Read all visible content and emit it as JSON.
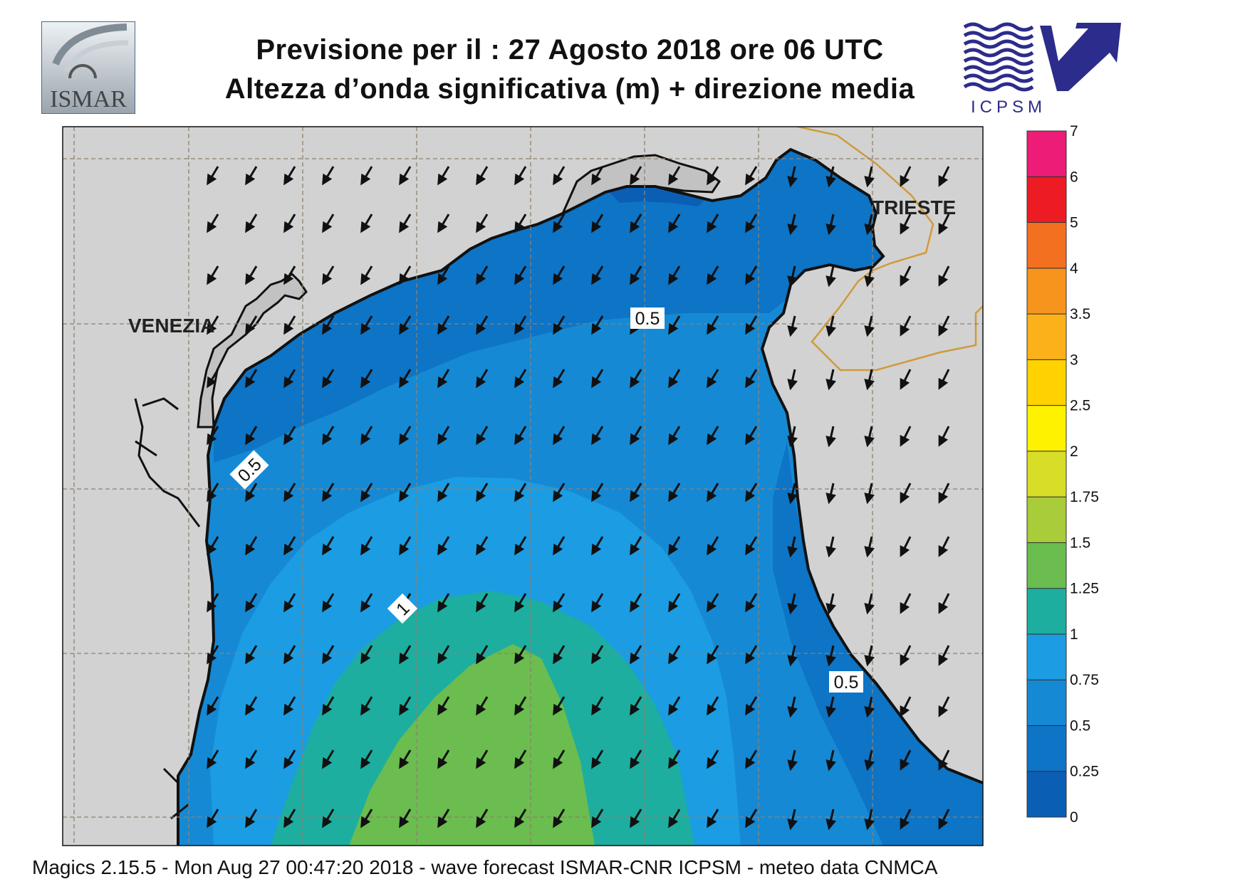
{
  "header": {
    "title_line1": "Previsione per il  :  27   Agosto  2018   ore 06 UTC",
    "title_line2": "Altezza d’onda significativa (m) + direzione media"
  },
  "logos": {
    "left": {
      "text": "ISMAR",
      "icon": "ismar-logo-icon"
    },
    "right": {
      "text": "ICPSM",
      "icon": "icpsm-wave-arrow-logo-icon"
    }
  },
  "map": {
    "region": "Northern Adriatic Sea",
    "cities": [
      {
        "name": "VENEZIA"
      },
      {
        "name": "TRIESTE"
      }
    ],
    "contour_labels": [
      "0.5",
      "0.5",
      "0.5",
      "1"
    ],
    "colors": {
      "land": "#d2d2d2",
      "coastline": "#111111",
      "border": "#d09a3a",
      "grid": "#8f8170"
    },
    "mean_wave_direction": "toward south-southwest"
  },
  "legend": {
    "title": "",
    "bands": [
      {
        "min": "0",
        "max": "0.25",
        "color": "#0a5fb5"
      },
      {
        "min": "0.25",
        "max": "0.5",
        "color": "#0d74c6"
      },
      {
        "min": "0.5",
        "max": "0.75",
        "color": "#1689d4"
      },
      {
        "min": "0.75",
        "max": "1",
        "color": "#1c9ce2"
      },
      {
        "min": "1",
        "max": "1.25",
        "color": "#1daea0"
      },
      {
        "min": "1.25",
        "max": "1.5",
        "color": "#6abd4e"
      },
      {
        "min": "1.5",
        "max": "1.75",
        "color": "#a8cc3a"
      },
      {
        "min": "1.75",
        "max": "2",
        "color": "#d8dd27"
      },
      {
        "min": "2",
        "max": "2.5",
        "color": "#fff200"
      },
      {
        "min": "2.5",
        "max": "3",
        "color": "#ffd200"
      },
      {
        "min": "3",
        "max": "3.5",
        "color": "#fbb21a"
      },
      {
        "min": "3.5",
        "max": "4",
        "color": "#f7941d"
      },
      {
        "min": "4",
        "max": "5",
        "color": "#f37021"
      },
      {
        "min": "5",
        "max": "6",
        "color": "#ed1c24"
      },
      {
        "min": "6",
        "max": "7",
        "color": "#ec1c77"
      }
    ],
    "tick_labels": [
      "0",
      "0.25",
      "0.5",
      "0.75",
      "1",
      "1.25",
      "1.5",
      "1.75",
      "2",
      "2.5",
      "3",
      "3.5",
      "4",
      "5",
      "6",
      "7"
    ]
  },
  "footer": {
    "text": "Magics 2.15.5 - Mon Aug 27 00:47:20 2018 - wave forecast  ISMAR-CNR  ICPSM - meteo data   CNMCA"
  }
}
